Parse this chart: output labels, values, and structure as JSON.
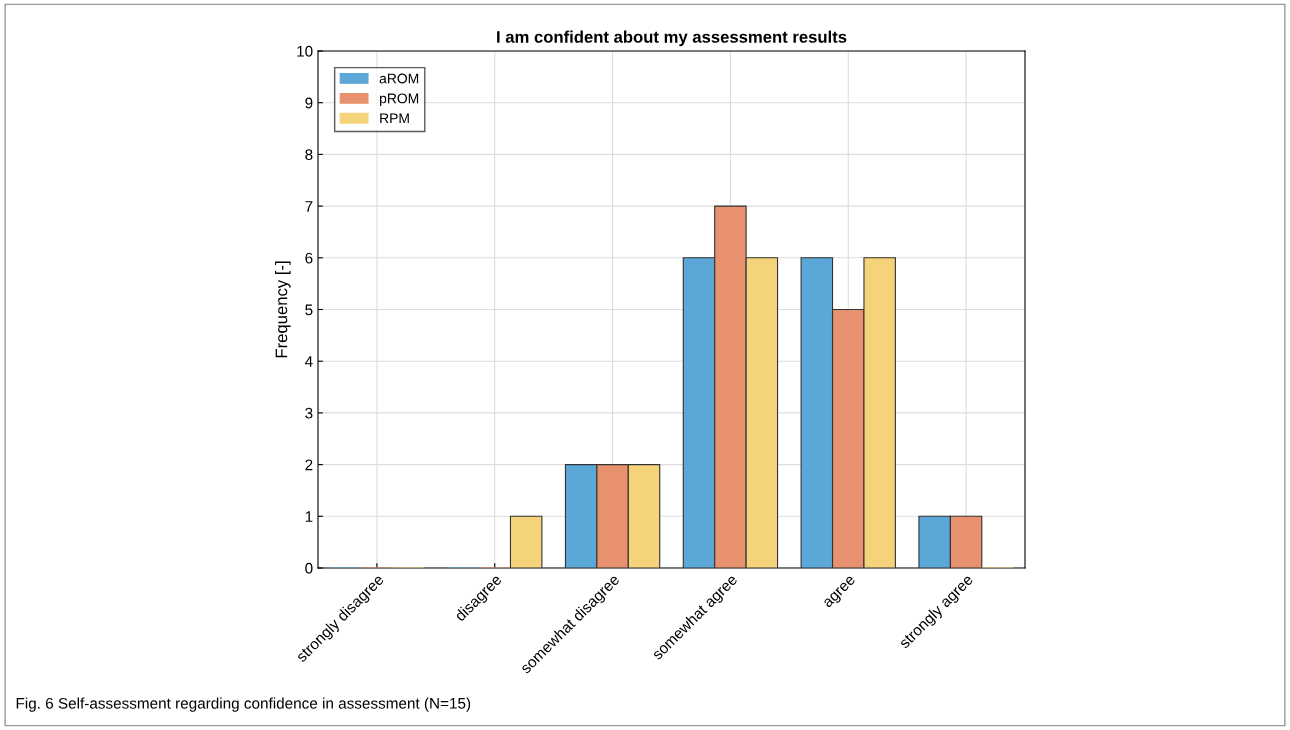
{
  "chart_data": {
    "type": "bar",
    "title": "I am confident about my assessment results",
    "ylabel": "Frequency [-]",
    "categories": [
      "strongly disagree",
      "disagree",
      "somewhat disagree",
      "somewhat agree",
      "agree",
      "strongly agree"
    ],
    "series": [
      {
        "name": "aROM",
        "color": "#5ba7d8",
        "values": [
          0,
          0,
          2,
          6,
          6,
          1
        ]
      },
      {
        "name": "pROM",
        "color": "#e8916f",
        "values": [
          0,
          0,
          2,
          7,
          5,
          1
        ]
      },
      {
        "name": "RPM",
        "color": "#f5d37a",
        "values": [
          0,
          1,
          2,
          6,
          6,
          0
        ]
      }
    ],
    "ylim": [
      0,
      10
    ],
    "yticks": [
      0,
      1,
      2,
      3,
      4,
      5,
      6,
      7,
      8,
      9,
      10
    ],
    "grid": true,
    "legend": "top left",
    "annotations": [
      "Fig. 6 Self-assessment regarding confidence in assessment (N=15)"
    ]
  }
}
